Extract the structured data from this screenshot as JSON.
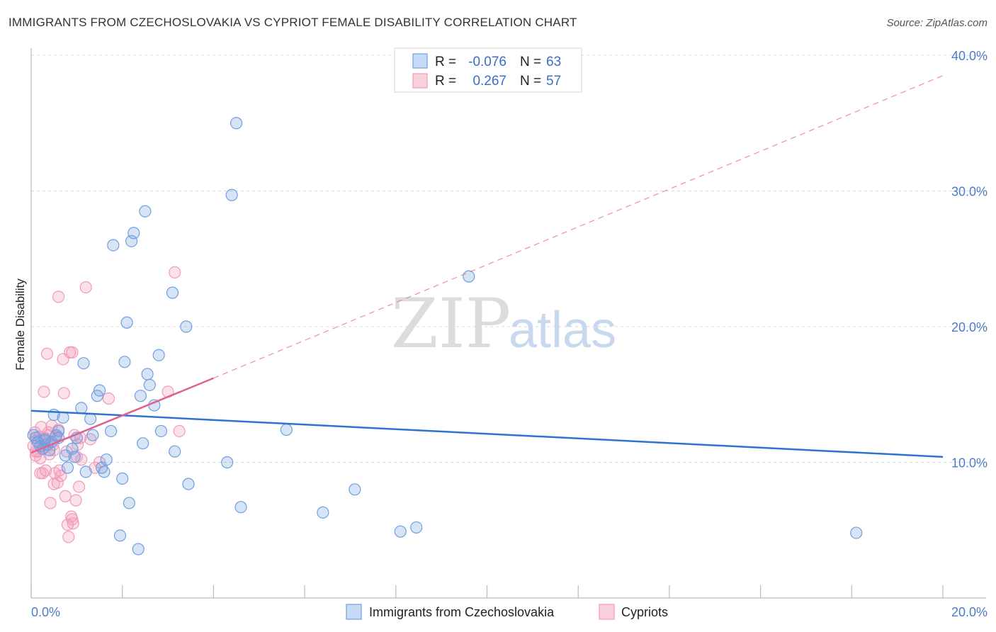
{
  "title": "IMMIGRANTS FROM CZECHOSLOVAKIA VS CYPRIOT FEMALE DISABILITY CORRELATION CHART",
  "source": "Source: ZipAtlas.com",
  "watermark": {
    "zip": "ZIP",
    "atlas": "atlas"
  },
  "chart_data": {
    "type": "scatter",
    "xlabel": "",
    "ylabel": "Female Disability",
    "xlim": [
      0,
      20
    ],
    "ylim": [
      0,
      40
    ],
    "x_ticks": [
      {
        "v": 0,
        "label": "0.0%"
      },
      {
        "v": 20,
        "label": "20.0%"
      }
    ],
    "y_ticks": [
      {
        "v": 10,
        "label": "10.0%"
      },
      {
        "v": 20,
        "label": "20.0%"
      },
      {
        "v": 30,
        "label": "30.0%"
      },
      {
        "v": 40,
        "label": "40.0%"
      }
    ],
    "legend": [
      {
        "r_label": "R =",
        "r": "-0.076",
        "n_label": "N =",
        "n": "63"
      },
      {
        "r_label": "R =",
        "r": "0.267",
        "n_label": "N =",
        "n": "57"
      }
    ],
    "series": [
      {
        "name": "Immigrants from Czechoslovakia",
        "color": "#6f9fe0",
        "line_color": "#2f72d0",
        "trend": {
          "x0": 0,
          "y0": 13.8,
          "x1": 20,
          "y1": 10.4
        },
        "points": [
          [
            0.05,
            12.0
          ],
          [
            0.1,
            11.8
          ],
          [
            0.15,
            11.5
          ],
          [
            0.2,
            11.2
          ],
          [
            0.25,
            11.0
          ],
          [
            0.3,
            11.6
          ],
          [
            0.35,
            11.3
          ],
          [
            0.4,
            10.9
          ],
          [
            0.45,
            11.5
          ],
          [
            0.5,
            13.5
          ],
          [
            0.55,
            12.0
          ],
          [
            0.6,
            11.8
          ],
          [
            0.7,
            13.3
          ],
          [
            0.75,
            10.5
          ],
          [
            0.8,
            9.6
          ],
          [
            0.9,
            11.0
          ],
          [
            0.95,
            10.4
          ],
          [
            1.0,
            11.8
          ],
          [
            1.1,
            14.0
          ],
          [
            1.15,
            17.3
          ],
          [
            1.2,
            9.3
          ],
          [
            1.3,
            13.2
          ],
          [
            1.35,
            12.0
          ],
          [
            1.45,
            14.9
          ],
          [
            1.5,
            15.3
          ],
          [
            1.55,
            9.6
          ],
          [
            1.6,
            9.3
          ],
          [
            1.65,
            10.2
          ],
          [
            1.75,
            12.3
          ],
          [
            1.8,
            26.0
          ],
          [
            1.95,
            4.6
          ],
          [
            2.0,
            8.8
          ],
          [
            2.05,
            17.4
          ],
          [
            2.1,
            20.3
          ],
          [
            2.15,
            7.0
          ],
          [
            2.2,
            26.3
          ],
          [
            2.25,
            26.9
          ],
          [
            2.35,
            3.6
          ],
          [
            2.4,
            14.9
          ],
          [
            2.45,
            11.4
          ],
          [
            2.5,
            28.5
          ],
          [
            2.55,
            16.5
          ],
          [
            2.6,
            15.7
          ],
          [
            2.7,
            14.2
          ],
          [
            2.8,
            17.9
          ],
          [
            2.85,
            12.3
          ],
          [
            3.1,
            22.5
          ],
          [
            3.15,
            10.8
          ],
          [
            3.4,
            20.0
          ],
          [
            3.45,
            8.4
          ],
          [
            4.3,
            10.0
          ],
          [
            4.4,
            29.7
          ],
          [
            4.5,
            35.0
          ],
          [
            4.6,
            6.7
          ],
          [
            6.4,
            6.3
          ],
          [
            7.1,
            8.0
          ],
          [
            8.1,
            4.9
          ],
          [
            8.45,
            5.2
          ],
          [
            9.6,
            23.7
          ],
          [
            18.1,
            4.8
          ],
          [
            5.6,
            12.4
          ],
          [
            0.3,
            11.7
          ],
          [
            0.6,
            12.3
          ]
        ]
      },
      {
        "name": "Cypriots",
        "color": "#f29ab9",
        "line_color": "#e0608e",
        "trend": {
          "x0": 0,
          "y0": 10.7,
          "x1": 4.0,
          "y1": 16.2
        },
        "trend_ext": {
          "x0": 4.0,
          "y0": 16.2,
          "x1": 20,
          "y1": 38.5
        },
        "points": [
          [
            0.05,
            11.2
          ],
          [
            0.08,
            12.2
          ],
          [
            0.1,
            10.5
          ],
          [
            0.12,
            11.6
          ],
          [
            0.15,
            10.8
          ],
          [
            0.18,
            11.9
          ],
          [
            0.2,
            10.3
          ],
          [
            0.22,
            12.6
          ],
          [
            0.25,
            9.2
          ],
          [
            0.28,
            15.2
          ],
          [
            0.3,
            11.1
          ],
          [
            0.32,
            9.4
          ],
          [
            0.35,
            18.0
          ],
          [
            0.38,
            12.2
          ],
          [
            0.4,
            10.6
          ],
          [
            0.42,
            7.0
          ],
          [
            0.45,
            12.7
          ],
          [
            0.48,
            11.3
          ],
          [
            0.5,
            8.4
          ],
          [
            0.52,
            9.2
          ],
          [
            0.55,
            11.9
          ],
          [
            0.58,
            8.5
          ],
          [
            0.6,
            12.4
          ],
          [
            0.62,
            9.4
          ],
          [
            0.65,
            9.0
          ],
          [
            0.6,
            22.2
          ],
          [
            0.7,
            17.6
          ],
          [
            0.72,
            15.1
          ],
          [
            0.75,
            7.5
          ],
          [
            0.78,
            10.8
          ],
          [
            0.8,
            5.4
          ],
          [
            0.82,
            4.5
          ],
          [
            0.85,
            18.1
          ],
          [
            0.88,
            6.0
          ],
          [
            0.9,
            5.8
          ],
          [
            0.92,
            5.5
          ],
          [
            0.95,
            12.0
          ],
          [
            0.98,
            7.2
          ],
          [
            1.0,
            10.4
          ],
          [
            1.02,
            11.3
          ],
          [
            1.05,
            8.2
          ],
          [
            1.08,
            11.8
          ],
          [
            1.1,
            10.2
          ],
          [
            1.2,
            22.9
          ],
          [
            1.3,
            11.7
          ],
          [
            1.5,
            10.0
          ],
          [
            1.7,
            14.7
          ],
          [
            3.0,
            15.2
          ],
          [
            3.15,
            24.0
          ],
          [
            3.25,
            12.3
          ],
          [
            0.1,
            10.8
          ],
          [
            0.2,
            9.2
          ],
          [
            0.3,
            11.8
          ],
          [
            0.4,
            12.0
          ],
          [
            0.5,
            10.9
          ],
          [
            0.9,
            18.1
          ],
          [
            1.4,
            9.6
          ]
        ]
      }
    ]
  }
}
